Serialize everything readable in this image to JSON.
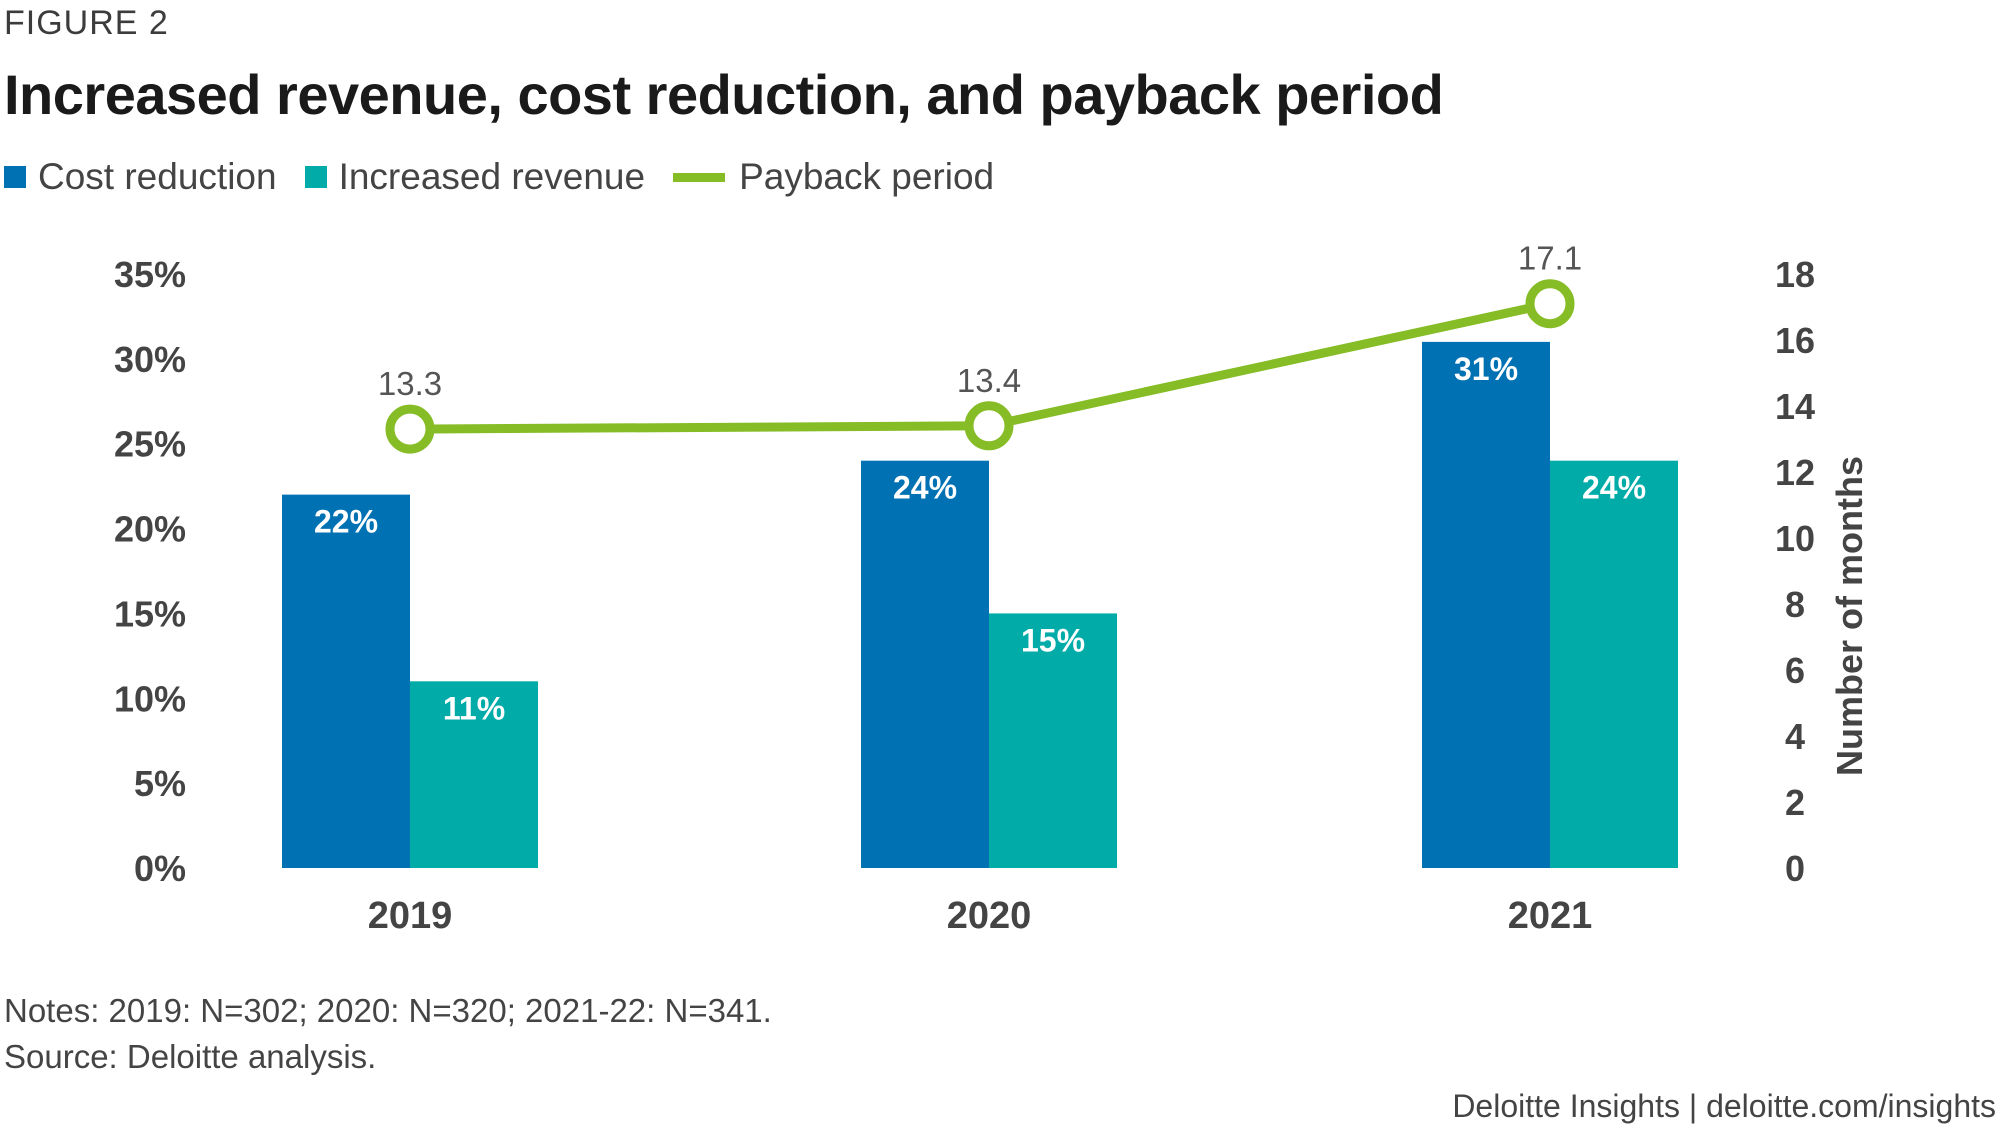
{
  "figure_label": "FIGURE 2",
  "title": "Increased revenue, cost reduction, and payback period",
  "legend": [
    {
      "label": "Cost reduction",
      "color": "#0071b3"
    },
    {
      "label": "Increased revenue",
      "color": "#00aba8"
    },
    {
      "label": "Payback period",
      "color": "#86bc25"
    }
  ],
  "notes": "Notes: 2019: N=302; 2020: N=320; 2021-22: N=341.",
  "source": "Source: Deloitte analysis.",
  "footer": "Deloitte Insights | deloitte.com/insights",
  "chart_data": {
    "type": "bar",
    "categories": [
      "2019",
      "2020",
      "2021"
    ],
    "series": [
      {
        "name": "Cost reduction",
        "type": "bar",
        "axis": "left",
        "values": [
          22,
          24,
          31
        ],
        "labels": [
          "22%",
          "24%",
          "31%"
        ],
        "color": "#0071b3"
      },
      {
        "name": "Increased revenue",
        "type": "bar",
        "axis": "left",
        "values": [
          11,
          15,
          24
        ],
        "labels": [
          "11%",
          "15%",
          "24%"
        ],
        "color": "#00aba8"
      },
      {
        "name": "Payback period",
        "type": "line",
        "axis": "right",
        "values": [
          13.3,
          13.4,
          17.1
        ],
        "labels": [
          "13.3",
          "13.4",
          "17.1"
        ],
        "color": "#86bc25"
      }
    ],
    "left_axis": {
      "ylim": [
        0,
        35
      ],
      "ticks": [
        "0%",
        "5%",
        "10%",
        "15%",
        "20%",
        "25%",
        "30%",
        "35%"
      ],
      "tick_values": [
        0,
        5,
        10,
        15,
        20,
        25,
        30,
        35
      ]
    },
    "right_axis": {
      "label": "Number of months",
      "ylim": [
        0,
        18
      ],
      "ticks": [
        "0",
        "2",
        "4",
        "6",
        "8",
        "10",
        "12",
        "14",
        "16",
        "18"
      ],
      "tick_values": [
        0,
        2,
        4,
        6,
        8,
        10,
        12,
        14,
        16,
        18
      ]
    },
    "grid": false
  }
}
